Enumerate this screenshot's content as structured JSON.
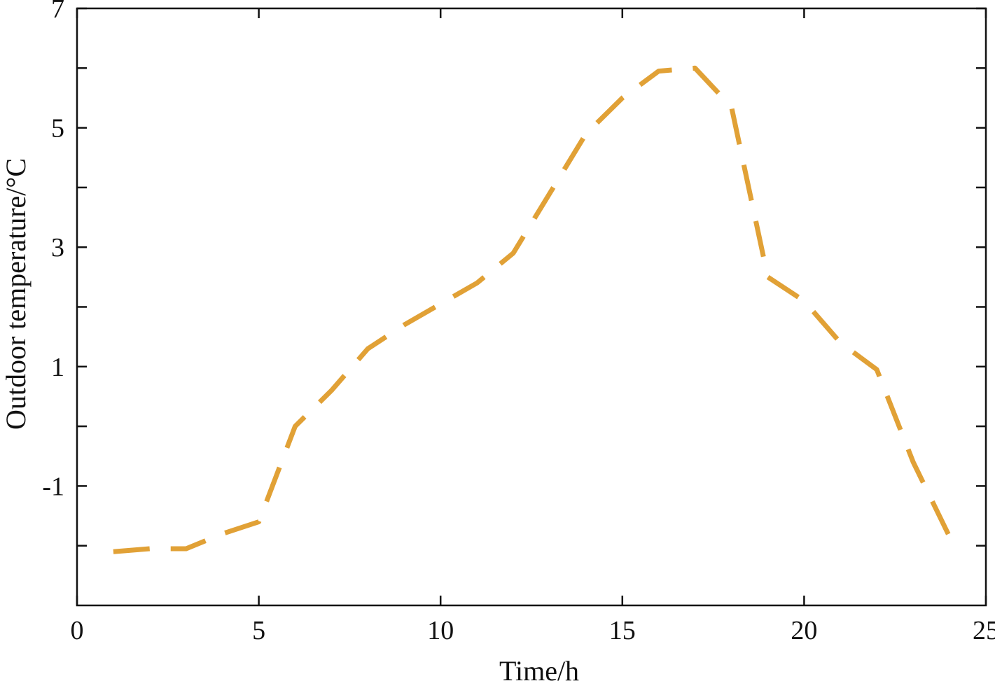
{
  "chart_data": {
    "type": "line",
    "title": "",
    "xlabel": "Time/h",
    "ylabel": "Outdoor temperature/°C",
    "xlim": [
      0,
      25
    ],
    "ylim": [
      -3,
      7
    ],
    "x_ticks": [
      0,
      5,
      10,
      15,
      20,
      25
    ],
    "x_tick_labels": [
      "0",
      "5",
      "10",
      "15",
      "20",
      "25"
    ],
    "y_major_ticks": [
      -1,
      1,
      3,
      5,
      7
    ],
    "y_tick_labels": [
      "-1",
      "1",
      "3",
      "5",
      "7"
    ],
    "y_minor_ticks": [
      -2,
      0,
      2,
      4,
      6
    ],
    "grid": false,
    "line_style": "dashed",
    "line_color": "#E1A136",
    "series": [
      {
        "x": [
          1,
          2,
          3,
          4,
          5,
          6,
          7,
          8,
          9,
          10,
          11,
          12,
          13,
          14,
          15,
          16,
          17,
          18,
          19,
          20,
          21,
          22,
          23,
          24
        ],
        "values": [
          -2.1,
          -2.05,
          -2.05,
          -1.8,
          -1.6,
          0.0,
          0.6,
          1.3,
          1.7,
          2.05,
          2.4,
          2.9,
          3.9,
          4.9,
          5.5,
          5.95,
          6.0,
          5.35,
          2.5,
          2.1,
          1.4,
          0.95,
          -0.6,
          -1.85
        ]
      }
    ]
  }
}
